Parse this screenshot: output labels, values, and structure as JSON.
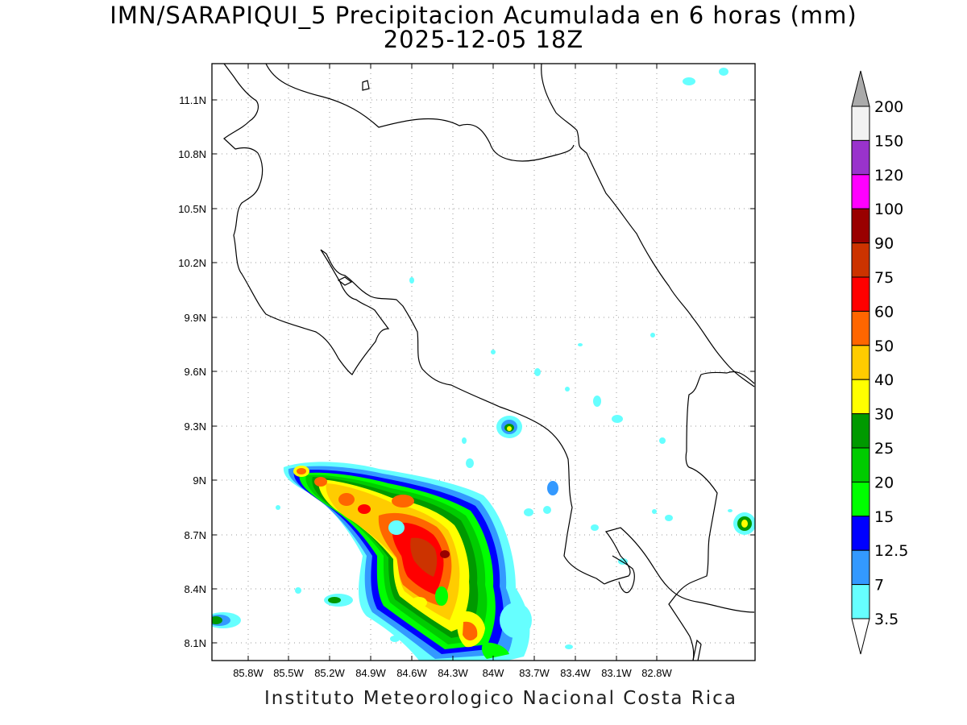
{
  "title": "IMN/SARAPIQUI_5 Precipitacion Acumulada en 6 horas (mm)",
  "subtitle": "2025-12-05 18Z",
  "footer": "Instituto Meteorologico Nacional Costa Rica",
  "map": {
    "x_ticks": [
      "85.8W",
      "85.5W",
      "85.2W",
      "84.9W",
      "84.6W",
      "84.3W",
      "84W",
      "83.7W",
      "83.4W",
      "83.1W",
      "82.8W"
    ],
    "y_ticks": [
      "11.1N",
      "10.8N",
      "10.5N",
      "10.2N",
      "9.9N",
      "9.6N",
      "9.3N",
      "9N",
      "8.7N",
      "8.4N",
      "8.1N"
    ]
  },
  "colorbar": {
    "labels": [
      "200",
      "150",
      "120",
      "100",
      "90",
      "75",
      "60",
      "50",
      "40",
      "30",
      "25",
      "20",
      "15",
      "12.5",
      "7",
      "3.5"
    ],
    "colors": [
      "#f2f2f2",
      "#9933cc",
      "#ff00ff",
      "#990000",
      "#cc3300",
      "#ff0000",
      "#ff6600",
      "#ffcc00",
      "#ffff00",
      "#009900",
      "#00cc00",
      "#00ff00",
      "#0000ff",
      "#3399ff",
      "#66ffff"
    ],
    "over_color": "#aaaaaa",
    "under_color": "#ffffff"
  }
}
